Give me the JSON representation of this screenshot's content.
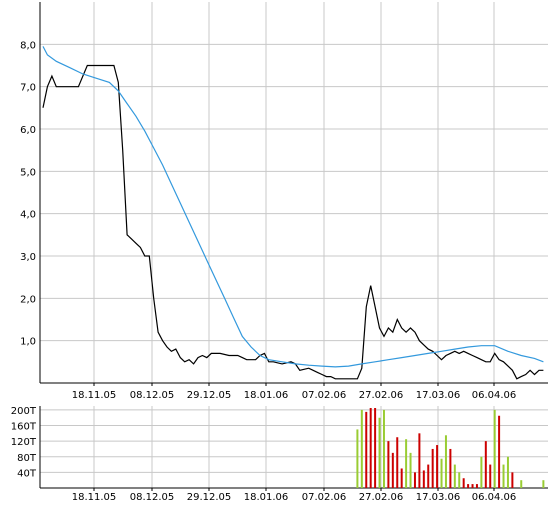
{
  "chart_data": [
    {
      "type": "line",
      "title": "",
      "xlabel": "",
      "ylabel": "",
      "ylim": [
        0.0,
        9.0
      ],
      "y_ticks": [
        "1,0",
        "2,0",
        "3,0",
        "4,0",
        "5,0",
        "6,0",
        "7,0",
        "8,0"
      ],
      "y_tick_values": [
        1,
        2,
        3,
        4,
        5,
        6,
        7,
        8
      ],
      "x_ticks": [
        "18.11.05",
        "08.12.05",
        "29.12.05",
        "18.01.06",
        "07.02.06",
        "27.02.06",
        "17.03.06",
        "06.04.06"
      ],
      "grid": true,
      "series": [
        {
          "color": "#000000",
          "points": [
            [
              0,
              6.5
            ],
            [
              1,
              7.0
            ],
            [
              2,
              7.25
            ],
            [
              3,
              7.0
            ],
            [
              5,
              7.0
            ],
            [
              8,
              7.0
            ],
            [
              10,
              7.5
            ],
            [
              13,
              7.5
            ],
            [
              16,
              7.5
            ],
            [
              17,
              7.1
            ],
            [
              18,
              5.5
            ],
            [
              19,
              3.5
            ],
            [
              20,
              3.4
            ],
            [
              21,
              3.3
            ],
            [
              22,
              3.2
            ],
            [
              23,
              3.0
            ],
            [
              24,
              3.0
            ],
            [
              25,
              2.0
            ],
            [
              26,
              1.2
            ],
            [
              27,
              1.0
            ],
            [
              28,
              0.85
            ],
            [
              29,
              0.75
            ],
            [
              30,
              0.8
            ],
            [
              31,
              0.6
            ],
            [
              32,
              0.5
            ],
            [
              33,
              0.55
            ],
            [
              34,
              0.45
            ],
            [
              35,
              0.6
            ],
            [
              36,
              0.65
            ],
            [
              37,
              0.6
            ],
            [
              38,
              0.7
            ],
            [
              40,
              0.7
            ],
            [
              42,
              0.65
            ],
            [
              44,
              0.65
            ],
            [
              45,
              0.6
            ],
            [
              46,
              0.55
            ],
            [
              48,
              0.55
            ],
            [
              49,
              0.65
            ],
            [
              50,
              0.7
            ],
            [
              51,
              0.5
            ],
            [
              52,
              0.5
            ],
            [
              54,
              0.45
            ],
            [
              56,
              0.5
            ],
            [
              57,
              0.45
            ],
            [
              58,
              0.3
            ],
            [
              60,
              0.35
            ],
            [
              61,
              0.3
            ],
            [
              62,
              0.25
            ],
            [
              63,
              0.2
            ],
            [
              64,
              0.15
            ],
            [
              65,
              0.15
            ],
            [
              66,
              0.1
            ],
            [
              70,
              0.1
            ],
            [
              71,
              0.1
            ],
            [
              72,
              0.35
            ],
            [
              73,
              1.8
            ],
            [
              74,
              2.3
            ],
            [
              75,
              1.8
            ],
            [
              76,
              1.3
            ],
            [
              77,
              1.1
            ],
            [
              78,
              1.3
            ],
            [
              79,
              1.2
            ],
            [
              80,
              1.5
            ],
            [
              81,
              1.3
            ],
            [
              82,
              1.2
            ],
            [
              83,
              1.3
            ],
            [
              84,
              1.2
            ],
            [
              85,
              1.0
            ],
            [
              86,
              0.9
            ],
            [
              87,
              0.8
            ],
            [
              88,
              0.75
            ],
            [
              89,
              0.65
            ],
            [
              90,
              0.55
            ],
            [
              91,
              0.65
            ],
            [
              92,
              0.7
            ],
            [
              93,
              0.75
            ],
            [
              94,
              0.7
            ],
            [
              95,
              0.75
            ],
            [
              96,
              0.7
            ],
            [
              97,
              0.65
            ],
            [
              98,
              0.6
            ],
            [
              99,
              0.55
            ],
            [
              100,
              0.5
            ],
            [
              101,
              0.5
            ],
            [
              102,
              0.7
            ],
            [
              103,
              0.55
            ],
            [
              104,
              0.5
            ],
            [
              105,
              0.4
            ],
            [
              106,
              0.3
            ],
            [
              107,
              0.1
            ],
            [
              108,
              0.15
            ],
            [
              109,
              0.2
            ],
            [
              110,
              0.3
            ],
            [
              111,
              0.2
            ],
            [
              112,
              0.3
            ],
            [
              113,
              0.3
            ]
          ]
        },
        {
          "color": "#3399dd",
          "points": [
            [
              0,
              7.95
            ],
            [
              1,
              7.75
            ],
            [
              3,
              7.6
            ],
            [
              6,
              7.45
            ],
            [
              9,
              7.3
            ],
            [
              12,
              7.2
            ],
            [
              15,
              7.1
            ],
            [
              17,
              6.9
            ],
            [
              19,
              6.6
            ],
            [
              21,
              6.3
            ],
            [
              23,
              5.95
            ],
            [
              25,
              5.55
            ],
            [
              27,
              5.15
            ],
            [
              29,
              4.7
            ],
            [
              31,
              4.25
            ],
            [
              33,
              3.8
            ],
            [
              35,
              3.35
            ],
            [
              37,
              2.9
            ],
            [
              39,
              2.45
            ],
            [
              41,
              2.0
            ],
            [
              43,
              1.55
            ],
            [
              45,
              1.1
            ],
            [
              47,
              0.85
            ],
            [
              49,
              0.65
            ],
            [
              51,
              0.55
            ],
            [
              54,
              0.5
            ],
            [
              57,
              0.45
            ],
            [
              60,
              0.42
            ],
            [
              63,
              0.4
            ],
            [
              66,
              0.38
            ],
            [
              69,
              0.4
            ],
            [
              72,
              0.45
            ],
            [
              75,
              0.5
            ],
            [
              78,
              0.55
            ],
            [
              81,
              0.6
            ],
            [
              84,
              0.65
            ],
            [
              87,
              0.7
            ],
            [
              90,
              0.75
            ],
            [
              93,
              0.8
            ],
            [
              96,
              0.85
            ],
            [
              99,
              0.88
            ],
            [
              102,
              0.88
            ],
            [
              105,
              0.75
            ],
            [
              108,
              0.65
            ],
            [
              111,
              0.58
            ],
            [
              113,
              0.5
            ]
          ]
        }
      ]
    },
    {
      "type": "bar",
      "title": "",
      "xlabel": "",
      "ylabel": "",
      "ylim": [
        0,
        210
      ],
      "y_ticks": [
        "40T",
        "80T",
        "120T",
        "160T",
        "200T"
      ],
      "y_tick_values": [
        40,
        80,
        120,
        160,
        200
      ],
      "x_ticks": [
        "18.11.05",
        "08.12.05",
        "29.12.05",
        "18.01.06",
        "07.02.06",
        "27.02.06",
        "17.03.06",
        "06.04.06"
      ],
      "grid": true,
      "bars": [
        {
          "x": 71,
          "value": 150,
          "color": "#99cc33"
        },
        {
          "x": 72,
          "value": 200,
          "color": "#99cc33"
        },
        {
          "x": 73,
          "value": 195,
          "color": "#cc0000"
        },
        {
          "x": 74,
          "value": 205,
          "color": "#cc0000"
        },
        {
          "x": 75,
          "value": 205,
          "color": "#cc0000"
        },
        {
          "x": 76,
          "value": 180,
          "color": "#99cc33"
        },
        {
          "x": 77,
          "value": 200,
          "color": "#99cc33"
        },
        {
          "x": 78,
          "value": 120,
          "color": "#cc0000"
        },
        {
          "x": 79,
          "value": 90,
          "color": "#cc0000"
        },
        {
          "x": 80,
          "value": 130,
          "color": "#cc0000"
        },
        {
          "x": 81,
          "value": 50,
          "color": "#cc0000"
        },
        {
          "x": 82,
          "value": 125,
          "color": "#99cc33"
        },
        {
          "x": 83,
          "value": 90,
          "color": "#99cc33"
        },
        {
          "x": 84,
          "value": 40,
          "color": "#cc0000"
        },
        {
          "x": 85,
          "value": 140,
          "color": "#cc0000"
        },
        {
          "x": 86,
          "value": 45,
          "color": "#cc0000"
        },
        {
          "x": 87,
          "value": 60,
          "color": "#cc0000"
        },
        {
          "x": 88,
          "value": 100,
          "color": "#cc0000"
        },
        {
          "x": 89,
          "value": 110,
          "color": "#cc0000"
        },
        {
          "x": 90,
          "value": 75,
          "color": "#99cc33"
        },
        {
          "x": 91,
          "value": 135,
          "color": "#99cc33"
        },
        {
          "x": 92,
          "value": 100,
          "color": "#cc0000"
        },
        {
          "x": 93,
          "value": 60,
          "color": "#99cc33"
        },
        {
          "x": 94,
          "value": 40,
          "color": "#99cc33"
        },
        {
          "x": 95,
          "value": 25,
          "color": "#cc0000"
        },
        {
          "x": 96,
          "value": 10,
          "color": "#cc0000"
        },
        {
          "x": 97,
          "value": 10,
          "color": "#cc0000"
        },
        {
          "x": 98,
          "value": 10,
          "color": "#cc0000"
        },
        {
          "x": 99,
          "value": 80,
          "color": "#99cc33"
        },
        {
          "x": 100,
          "value": 120,
          "color": "#cc0000"
        },
        {
          "x": 101,
          "value": 60,
          "color": "#cc0000"
        },
        {
          "x": 102,
          "value": 200,
          "color": "#99cc33"
        },
        {
          "x": 103,
          "value": 185,
          "color": "#cc0000"
        },
        {
          "x": 104,
          "value": 60,
          "color": "#99cc33"
        },
        {
          "x": 105,
          "value": 80,
          "color": "#99cc33"
        },
        {
          "x": 106,
          "value": 40,
          "color": "#cc0000"
        },
        {
          "x": 108,
          "value": 20,
          "color": "#99cc33"
        },
        {
          "x": 113,
          "value": 20,
          "color": "#99cc33"
        }
      ]
    }
  ]
}
